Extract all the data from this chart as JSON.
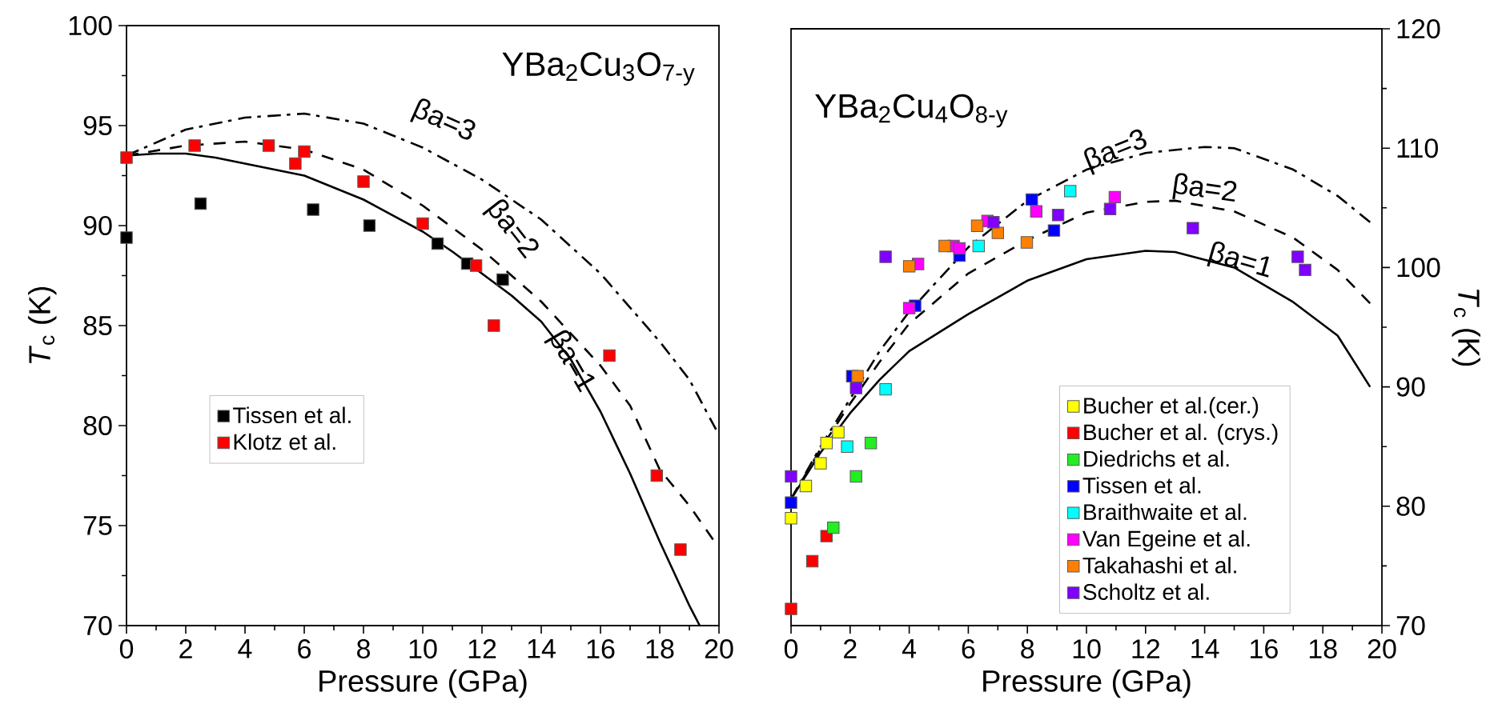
{
  "chart_data": [
    {
      "type": "scatter",
      "title": "YBa$_{2}$Cu$_{3}$O$_{7-y}$",
      "xlabel": "Pressure (GPa)",
      "ylabel": "*T*$_{c}$ (K)",
      "xlim": [
        0,
        20
      ],
      "ylim": [
        70,
        100
      ],
      "xticks": [
        0,
        2,
        4,
        6,
        8,
        10,
        12,
        14,
        16,
        18,
        20
      ],
      "yticks": [
        70,
        75,
        80,
        85,
        90,
        95,
        100
      ],
      "marker": "square",
      "legend": "left",
      "series": [
        {
          "name": "Tissen et al.",
          "color": "#000000",
          "x": [
            0,
            2.5,
            6.3,
            8.2,
            10.5,
            11.5,
            12.7
          ],
          "values": [
            89.4,
            91.1,
            90.8,
            90.0,
            89.1,
            88.1,
            87.3
          ]
        },
        {
          "name": "Klotz et al.",
          "color": "#ff0000",
          "x": [
            0,
            2.3,
            4.8,
            5.7,
            6.0,
            8.0,
            10.0,
            11.8,
            12.4,
            16.3,
            17.9,
            18.7
          ],
          "values": [
            93.4,
            94.0,
            94.0,
            93.1,
            93.7,
            92.2,
            90.1,
            88.0,
            85.0,
            83.5,
            77.5,
            73.8
          ]
        },
        {
          "type": "line",
          "marker": "none",
          "line_style": "solid",
          "color": "#000000",
          "x": [
            0,
            1,
            2,
            3,
            4,
            5,
            6,
            8,
            10,
            11,
            12,
            13,
            14,
            15,
            16,
            17,
            18,
            19,
            19.35
          ],
          "values": [
            93.5,
            93.6,
            93.6,
            93.4,
            93.1,
            92.8,
            92.5,
            91.3,
            89.7,
            88.7,
            87.6,
            86.5,
            85.2,
            83.3,
            80.7,
            77.6,
            74.2,
            71.0,
            70.0
          ]
        },
        {
          "type": "line",
          "marker": "none",
          "line_style": "dashed",
          "color": "#000000",
          "x": [
            0,
            2,
            4,
            6,
            8,
            10,
            12,
            14,
            16,
            17,
            18,
            19,
            19.8
          ],
          "values": [
            93.5,
            94.0,
            94.2,
            93.8,
            92.8,
            91.0,
            88.8,
            86.2,
            83.0,
            81.0,
            77.8,
            76.0,
            74.3
          ]
        },
        {
          "type": "line",
          "marker": "none",
          "line_style": "dashdot",
          "color": "#000000",
          "x": [
            0,
            2,
            4,
            6,
            8,
            10,
            12,
            14,
            16,
            18,
            19,
            19.9
          ],
          "values": [
            93.5,
            94.8,
            95.4,
            95.6,
            95.1,
            93.9,
            92.3,
            90.3,
            87.6,
            84.2,
            82.3,
            79.8
          ]
        }
      ],
      "annotations": [
        "βa=3",
        "βa=2",
        "βa=1"
      ]
    },
    {
      "type": "scatter",
      "title": "YBa$_{2}$Cu$_{4}$O$_{8-y}$",
      "xlabel": "Pressure (GPa)",
      "ylabel": "*T*$_{c}$ (K)",
      "xlim": [
        0,
        20
      ],
      "ylim": [
        70,
        120
      ],
      "xticks": [
        0,
        2,
        4,
        6,
        8,
        10,
        12,
        14,
        16,
        18,
        20
      ],
      "yticks": [
        70,
        80,
        90,
        100,
        110,
        120
      ],
      "marker": "square",
      "legend": "bottom right",
      "series": [
        {
          "name": "Bucher et al.(cer.)",
          "color": "#ffff00",
          "x": [
            0,
            0.5,
            1.0,
            1.2,
            1.6
          ],
          "values": [
            79.0,
            81.7,
            83.6,
            85.3,
            86.2
          ]
        },
        {
          "name": "Bucher et al. (crys.)",
          "color": "#ff0000",
          "x": [
            0,
            0.72,
            1.2
          ],
          "values": [
            71.4,
            75.4,
            77.5
          ]
        },
        {
          "name": "Diedrichs et al.",
          "color": "#22ee22",
          "x": [
            1.43,
            2.2,
            2.7
          ],
          "values": [
            78.2,
            82.5,
            85.3
          ]
        },
        {
          "name": "Tissen et al.",
          "color": "#0000ff",
          "x": [
            0,
            2.07,
            4.2,
            5.7,
            8.15,
            8.9
          ],
          "values": [
            80.3,
            90.9,
            96.8,
            101.0,
            105.7,
            103.1
          ]
        },
        {
          "name": "Braithwaite et al.",
          "color": "#00ffff",
          "x": [
            1.9,
            3.2,
            6.35,
            9.45
          ],
          "values": [
            85.0,
            89.8,
            101.8,
            106.4
          ]
        },
        {
          "name": "Van Egeine et al.",
          "color": "#ff00ff",
          "x": [
            4.0,
            4.3,
            5.5,
            5.7,
            6.65,
            8.3,
            10.96
          ],
          "values": [
            96.6,
            100.3,
            101.8,
            101.6,
            103.9,
            104.7,
            105.9
          ]
        },
        {
          "name": "Takahashi et al.",
          "color": "#ff8000",
          "x": [
            2.25,
            4.0,
            5.2,
            6.3,
            7.0,
            7.98
          ],
          "values": [
            90.9,
            100.1,
            101.8,
            103.5,
            102.9,
            102.1
          ]
        },
        {
          "name": "Scholtz et al.",
          "color": "#8000ff",
          "x": [
            0,
            2.2,
            3.2,
            6.85,
            9.04,
            10.8,
            13.6,
            17.15,
            17.4
          ],
          "values": [
            82.5,
            89.9,
            100.9,
            103.8,
            104.4,
            104.9,
            103.3,
            100.9,
            99.8
          ]
        },
        {
          "type": "line",
          "marker": "none",
          "line_style": "solid",
          "color": "#000000",
          "x": [
            0,
            1,
            2,
            3,
            4,
            6,
            8,
            10,
            12,
            13,
            15,
            17,
            18.5,
            19.6
          ],
          "values": [
            80.6,
            84.5,
            87.8,
            90.6,
            93.0,
            96.1,
            98.9,
            100.7,
            101.4,
            101.3,
            100.0,
            97.1,
            94.3,
            90.0
          ]
        },
        {
          "type": "line",
          "marker": "none",
          "line_style": "dashed",
          "color": "#000000",
          "x": [
            0,
            1,
            2,
            3,
            4,
            6,
            8,
            10,
            12,
            13,
            15,
            17,
            18.5,
            19.6
          ],
          "values": [
            80.6,
            84.8,
            88.6,
            92.1,
            95.3,
            99.5,
            102.3,
            104.6,
            105.5,
            105.6,
            104.7,
            102.5,
            99.8,
            97.0
          ]
        },
        {
          "type": "line",
          "marker": "none",
          "line_style": "dashdot",
          "color": "#000000",
          "x": [
            0,
            1,
            2,
            3,
            4,
            6,
            8,
            10,
            12,
            14,
            15,
            17,
            18.5,
            19.6
          ],
          "values": [
            80.6,
            85.0,
            89.0,
            93.0,
            96.3,
            101.7,
            105.6,
            108.2,
            109.6,
            110.1,
            110.0,
            108.2,
            106.0,
            103.8
          ]
        }
      ],
      "annotations": [
        "βa=3",
        "βa=2",
        "βa=1"
      ]
    }
  ]
}
